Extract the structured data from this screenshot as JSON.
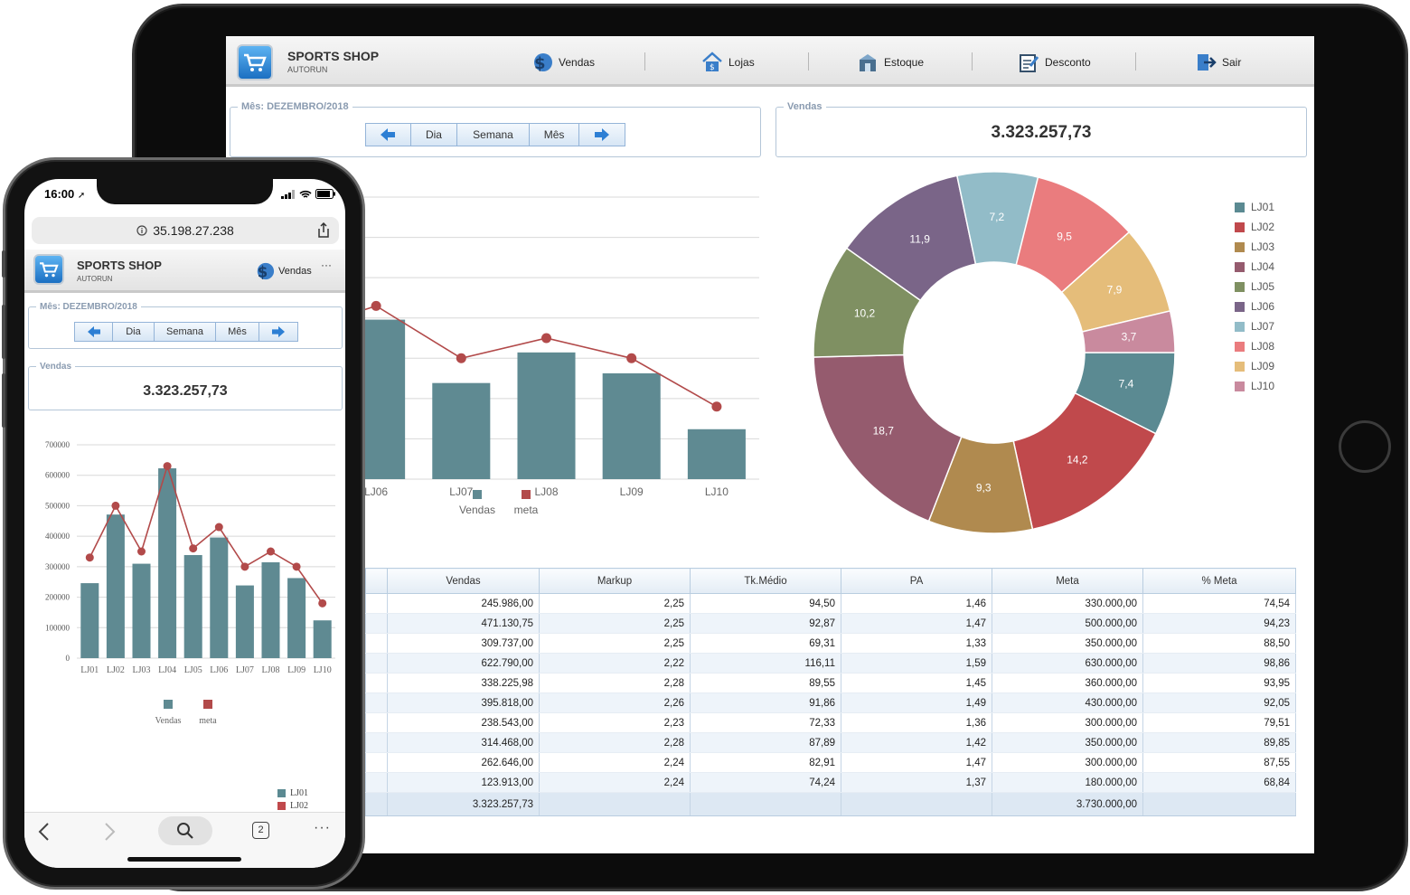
{
  "app": {
    "brand_name": "SPORTS SHOP",
    "brand_sub": "AUTORUN",
    "nav": [
      {
        "label": "Vendas",
        "icon": "sales-icon"
      },
      {
        "label": "Lojas",
        "icon": "store-icon"
      },
      {
        "label": "Estoque",
        "icon": "stock-icon"
      },
      {
        "label": "Desconto",
        "icon": "discount-icon"
      },
      {
        "label": "Sair",
        "icon": "exit-icon"
      }
    ]
  },
  "period": {
    "legend": "Mês: DEZEMBRO/2018",
    "buttons": [
      "Dia",
      "Semana",
      "Mês"
    ]
  },
  "total": {
    "legend": "Vendas",
    "value": "3.323.257,73"
  },
  "colors": {
    "bar": "#5f8a92",
    "line": "#b24a4a",
    "accent": "#1b6fc2"
  },
  "chart_data": [
    {
      "type": "bar",
      "categories": [
        "LJ01",
        "LJ02",
        "LJ03",
        "LJ04",
        "LJ05",
        "LJ06",
        "LJ07",
        "LJ08",
        "LJ09",
        "LJ10"
      ],
      "series": [
        {
          "name": "Vendas",
          "type": "bar",
          "values": [
            245986,
            471130.75,
            309737,
            622790,
            338225.98,
            395818,
            238543,
            314468,
            262646,
            123913
          ]
        },
        {
          "name": "meta",
          "type": "line",
          "values": [
            330000,
            500000,
            350000,
            630000,
            360000,
            430000,
            300000,
            350000,
            300000,
            180000
          ]
        }
      ],
      "ylim": [
        0,
        700000
      ],
      "yticks": [
        "0",
        "100000",
        "200000",
        "300000",
        "400000",
        "500000",
        "600000",
        "700000"
      ],
      "legend": [
        "Vendas",
        "meta"
      ]
    },
    {
      "type": "pie",
      "donut": true,
      "labels": [
        "LJ01",
        "LJ02",
        "LJ03",
        "LJ04",
        "LJ05",
        "LJ06",
        "LJ07",
        "LJ08",
        "LJ09",
        "LJ10"
      ],
      "values": [
        7.4,
        14.2,
        9.3,
        18.7,
        10.2,
        11.9,
        7.2,
        9.5,
        7.9,
        3.7
      ],
      "value_labels": [
        "7,4",
        "14,2",
        "9,3",
        "18,7",
        "10,2",
        "11,9",
        "7,2",
        "9,5",
        "7,9",
        "3,7"
      ],
      "colors": [
        "#5b8a92",
        "#c0494c",
        "#b08a4f",
        "#955b6e",
        "#7f9062",
        "#7a6588",
        "#92bcc8",
        "#ea7c7e",
        "#e5bd7a",
        "#c98a9e"
      ],
      "legend_position": "right"
    },
    {
      "type": "table",
      "columns": [
        "Vendas",
        "Markup",
        "Tk.Médio",
        "PA",
        "Meta",
        "% Meta"
      ],
      "rows": [
        [
          "245.986,00",
          "2,25",
          "94,50",
          "1,46",
          "330.000,00",
          "74,54"
        ],
        [
          "471.130,75",
          "2,25",
          "92,87",
          "1,47",
          "500.000,00",
          "94,23"
        ],
        [
          "309.737,00",
          "2,25",
          "69,31",
          "1,33",
          "350.000,00",
          "88,50"
        ],
        [
          "622.790,00",
          "2,22",
          "116,11",
          "1,59",
          "630.000,00",
          "98,86"
        ],
        [
          "338.225,98",
          "2,28",
          "89,55",
          "1,45",
          "360.000,00",
          "93,95"
        ],
        [
          "395.818,00",
          "2,26",
          "91,86",
          "1,49",
          "430.000,00",
          "92,05"
        ],
        [
          "238.543,00",
          "2,23",
          "72,33",
          "1,36",
          "300.000,00",
          "79,51"
        ],
        [
          "314.468,00",
          "2,28",
          "87,89",
          "1,42",
          "350.000,00",
          "89,85"
        ],
        [
          "262.646,00",
          "2,24",
          "82,91",
          "1,47",
          "300.000,00",
          "87,55"
        ],
        [
          "123.913,00",
          "2,24",
          "74,24",
          "1,37",
          "180.000,00",
          "68,84"
        ]
      ],
      "totals": [
        "3.323.257,73",
        "",
        "",
        "",
        "3.730.000,00",
        ""
      ]
    }
  ],
  "phone": {
    "time": "16:00",
    "url": "35.198.27.238",
    "nav_label": "Vendas",
    "more": "···",
    "tabs_count": "2",
    "partial_legend": [
      "LJ01",
      "LJ02"
    ]
  }
}
